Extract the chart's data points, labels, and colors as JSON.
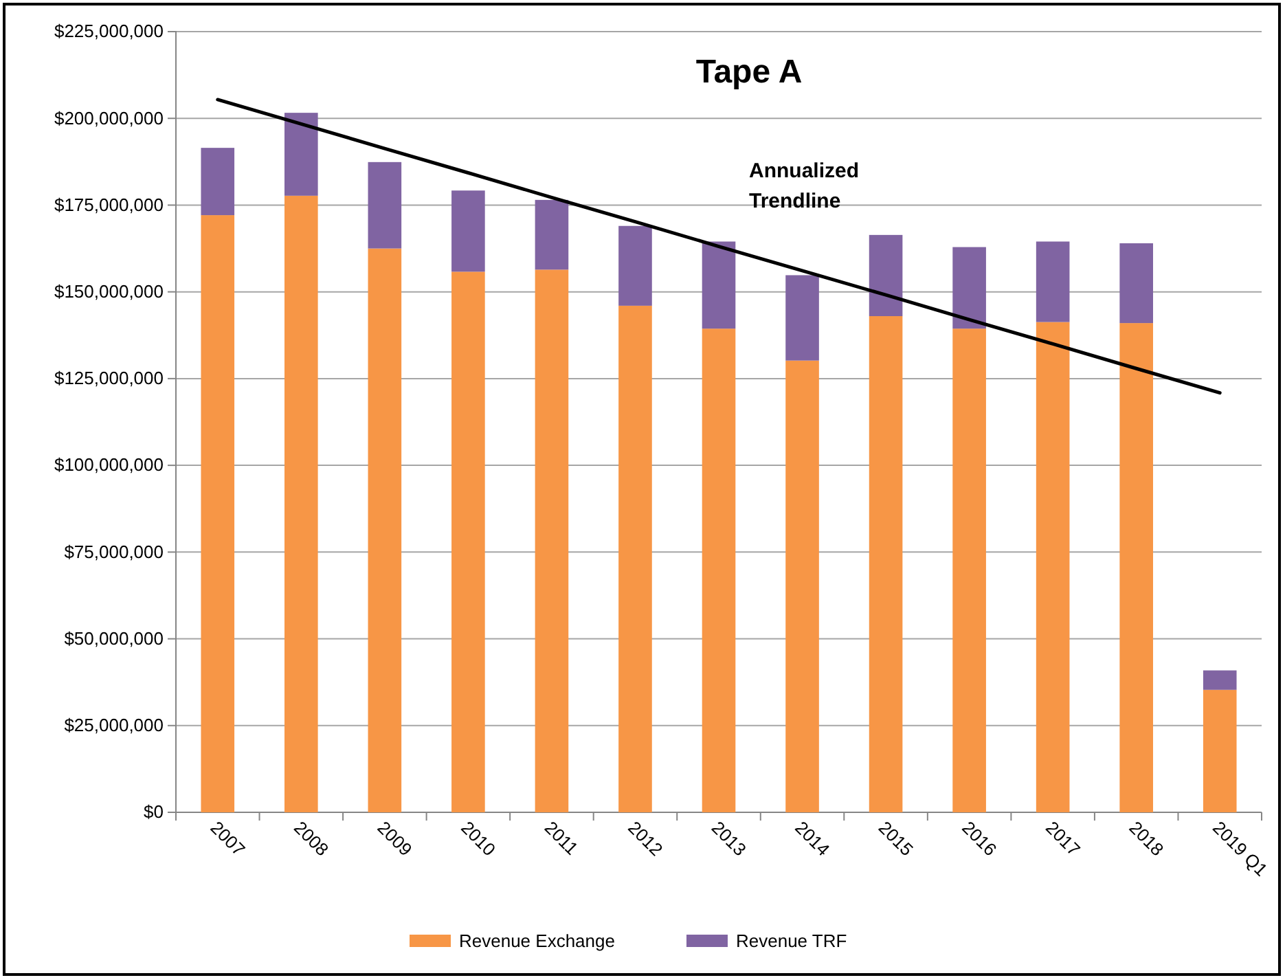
{
  "chart_data": {
    "type": "bar",
    "title": "Tape A",
    "stacked": true,
    "grid": "y",
    "legend": "bottom",
    "categories": [
      "2007",
      "2008",
      "2009",
      "2010",
      "2011",
      "2012",
      "2013",
      "2014",
      "2015",
      "2016",
      "2017",
      "2018",
      "2019 Q1"
    ],
    "series": [
      {
        "name": "Revenue Exchange",
        "color": "#f79646",
        "values": [
          172100000,
          177700000,
          162500000,
          155800000,
          156400000,
          146000000,
          139400000,
          130200000,
          143000000,
          139400000,
          141300000,
          141000000,
          35300000
        ]
      },
      {
        "name": "Revenue TRF",
        "color": "#8064a2",
        "values": [
          19400000,
          23900000,
          24900000,
          23400000,
          20100000,
          23000000,
          25100000,
          24600000,
          23400000,
          23500000,
          23200000,
          23000000,
          5600000
        ]
      },
      {
        "type": "line",
        "color": "#000000",
        "values": [
          205400000,
          198400000,
          191300000,
          184300000,
          177200000,
          170200000,
          163100000,
          156100000,
          149100000,
          142000000,
          135000000,
          127900000,
          120900000
        ]
      }
    ],
    "ylim": [
      0,
      225000000
    ],
    "yticks": [
      {
        "value": 0,
        "label": "$0"
      },
      {
        "value": 25000000,
        "label": "$25,000,000"
      },
      {
        "value": 50000000,
        "label": "$50,000,000"
      },
      {
        "value": 75000000,
        "label": "$75,000,000"
      },
      {
        "value": 100000000,
        "label": "$100,000,000"
      },
      {
        "value": 125000000,
        "label": "$125,000,000"
      },
      {
        "value": 150000000,
        "label": "$150,000,000"
      },
      {
        "value": 175000000,
        "label": "$175,000,000"
      },
      {
        "value": 200000000,
        "label": "$200,000,000"
      },
      {
        "value": 225000000,
        "label": "$225,000,000"
      }
    ],
    "annotations": [
      "Annualized Trendline"
    ]
  }
}
